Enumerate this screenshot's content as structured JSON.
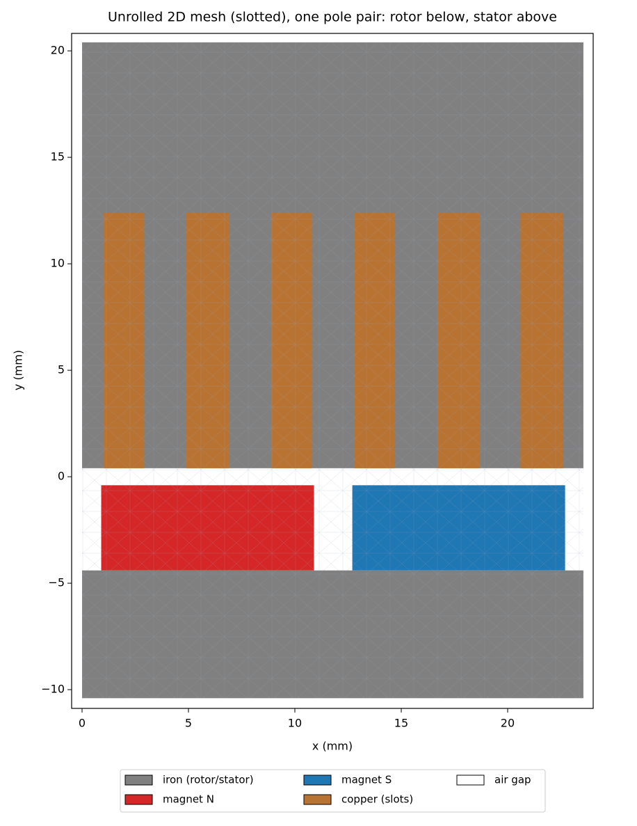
{
  "chart_data": {
    "type": "regions",
    "title": "Unrolled 2D mesh (slotted), one pole pair: rotor below, stator above",
    "x_label": "x (mm)",
    "y_label": "y (mm)",
    "xlim": [
      -0.49,
      24.02
    ],
    "ylim": [
      -10.88,
      20.82
    ],
    "xticks": [
      0,
      5,
      10,
      15,
      20
    ],
    "yticks": [
      {
        "value": -10,
        "label": "−10"
      },
      {
        "value": -5,
        "label": "−5"
      },
      0,
      5,
      10,
      15,
      20
    ],
    "grid": false,
    "legend": "lower center outside",
    "series": [
      {
        "name": "iron (rotor/stator)",
        "color": "#808080",
        "rects": [
          [
            0,
            23.56,
            0.4,
            20.4
          ],
          [
            0,
            23.56,
            -10.4,
            -4.4
          ]
        ]
      },
      {
        "name": "magnet N",
        "color": "#d62728",
        "rects": [
          [
            0.9,
            10.9,
            -4.4,
            -0.4
          ]
        ]
      },
      {
        "name": "magnet S",
        "color": "#1f77b4",
        "rects": [
          [
            12.7,
            22.7,
            -4.4,
            -0.4
          ]
        ]
      },
      {
        "name": "copper (slots)",
        "color": "#b87333",
        "rects": [
          [
            1.0,
            2.9,
            0.4,
            12.4
          ],
          [
            4.9,
            6.9,
            0.4,
            12.4
          ],
          [
            8.9,
            10.8,
            0.4,
            12.4
          ],
          [
            12.8,
            14.7,
            0.4,
            12.4
          ],
          [
            16.7,
            18.7,
            0.4,
            12.4
          ],
          [
            20.6,
            22.6,
            0.4,
            12.4
          ]
        ]
      },
      {
        "name": "air gap",
        "color": "#ffffff",
        "rects": [
          [
            0,
            23.56,
            -4.4,
            0.4
          ]
        ]
      }
    ]
  }
}
